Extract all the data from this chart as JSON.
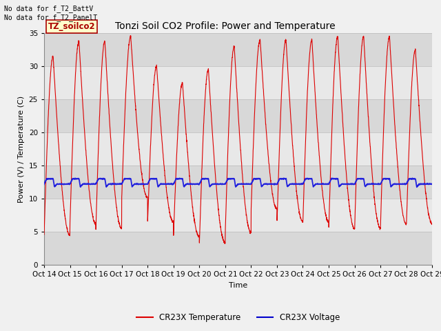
{
  "title": "Tonzi Soil CO2 Profile: Power and Temperature",
  "xlabel": "Time",
  "ylabel": "Power (V) / Temperature (C)",
  "ylim": [
    0,
    35
  ],
  "yticks": [
    0,
    5,
    10,
    15,
    20,
    25,
    30,
    35
  ],
  "num_cycles": 15,
  "x_tick_labels": [
    "Oct 14",
    "Oct 15",
    "Oct 16",
    "Oct 17",
    "Oct 18",
    "Oct 19",
    "Oct 20",
    "Oct 21",
    "Oct 22",
    "Oct 23",
    "Oct 24",
    "Oct 25",
    "Oct 26",
    "Oct 27",
    "Oct 28",
    "Oct 29"
  ],
  "legend_entries": [
    "CR23X Temperature",
    "CR23X Voltage"
  ],
  "legend_colors": [
    "#dd0000",
    "#0000cc"
  ],
  "temp_color": "#dd0000",
  "volt_color": "#2222dd",
  "grid_color_dark": "#cccccc",
  "grid_color_light": "#e8e8e8",
  "bg_color": "#e8e8e8",
  "plot_bg": "#f0f0f0",
  "annotation_text": "No data for f_T2_BattV\nNo data for f_T2_PanelT",
  "box_label": "TZ_soilco2",
  "box_color": "#ffffcc",
  "box_border_color": "#aa0000",
  "box_text_color": "#aa0000",
  "title_fontsize": 10,
  "axis_fontsize": 8,
  "tick_fontsize": 7.5,
  "peak_vals": [
    31.5,
    33.8,
    33.8,
    34.5,
    30.0,
    27.5,
    29.5,
    33.0,
    34.0,
    34.0,
    34.0,
    34.5,
    34.5,
    34.5,
    32.5
  ],
  "min_vals": [
    4.5,
    6.2,
    5.5,
    10.2,
    6.5,
    4.3,
    3.3,
    4.9,
    8.5,
    6.5,
    6.5,
    5.5,
    5.5,
    6.2,
    6.2
  ],
  "volt_base": 12.2,
  "volt_amp": 0.8
}
